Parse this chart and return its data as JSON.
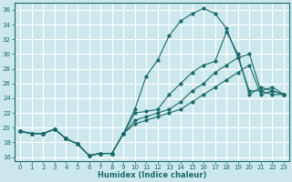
{
  "title": "",
  "xlabel": "Humidex (Indice chaleur)",
  "ylabel": "",
  "bg_color": "#cce8ec",
  "grid_color": "#ffffff",
  "line_color": "#1a6b6b",
  "xlim": [
    -0.5,
    23.5
  ],
  "ylim": [
    15.5,
    37.0
  ],
  "xticks": [
    0,
    1,
    2,
    3,
    4,
    5,
    6,
    7,
    8,
    9,
    10,
    11,
    12,
    13,
    14,
    15,
    16,
    17,
    18,
    19,
    20,
    21,
    22,
    23
  ],
  "yticks": [
    16,
    18,
    20,
    22,
    24,
    26,
    28,
    30,
    32,
    34,
    36
  ],
  "line1_y": [
    19.5,
    19.2,
    19.2,
    19.8,
    18.5,
    17.8,
    16.2,
    16.5,
    16.5,
    19.2,
    22.5,
    27.0,
    29.2,
    32.5,
    34.5,
    35.5,
    36.2,
    35.5,
    33.5,
    29.5,
    25.0,
    25.0,
    24.5,
    24.5
  ],
  "line2_y": [
    19.5,
    19.2,
    19.2,
    19.8,
    18.5,
    17.8,
    16.2,
    16.5,
    16.5,
    19.2,
    22.0,
    22.2,
    22.5,
    24.5,
    26.0,
    27.5,
    28.5,
    29.0,
    33.0,
    30.0,
    24.5,
    25.5,
    25.0,
    24.5
  ],
  "line3_y": [
    19.5,
    19.2,
    19.2,
    19.8,
    18.5,
    17.8,
    16.2,
    16.5,
    16.5,
    19.2,
    21.0,
    21.5,
    22.0,
    22.5,
    23.5,
    25.0,
    26.0,
    27.5,
    28.5,
    29.5,
    30.0,
    25.0,
    25.5,
    24.5
  ],
  "line4_y": [
    19.5,
    19.2,
    19.2,
    19.8,
    18.5,
    17.8,
    16.2,
    16.5,
    16.5,
    19.2,
    20.5,
    21.0,
    21.5,
    22.0,
    22.5,
    23.5,
    24.5,
    25.5,
    26.5,
    27.5,
    28.5,
    24.5,
    25.0,
    24.5
  ],
  "tick_fontsize": 5.0,
  "xlabel_fontsize": 6.0,
  "linewidth": 0.8,
  "markersize": 2.0
}
